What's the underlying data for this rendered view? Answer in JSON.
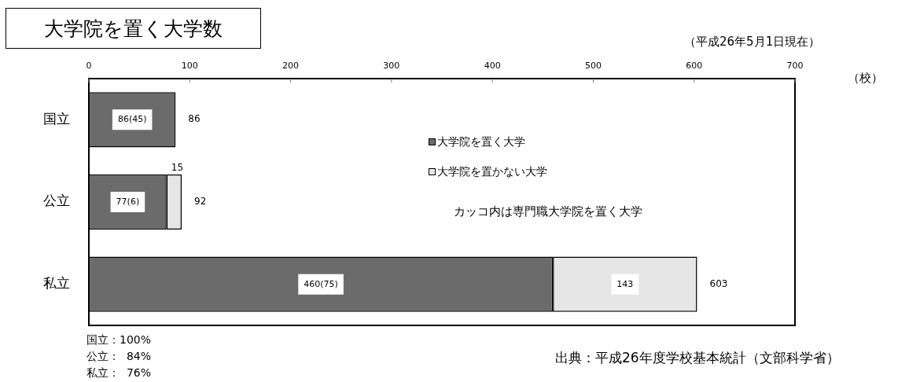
{
  "chart_data": {
    "type": "bar",
    "orientation": "horizontal",
    "stacked": true,
    "title": "大学院を置く大学数",
    "subtitle": "（平成26年5月1日現在）",
    "xlabel": "（校）",
    "categories": [
      "国立",
      "公立",
      "私立"
    ],
    "series": [
      {
        "name": "大学院を置く大学",
        "color": "#6b6b6b",
        "values": [
          86,
          77,
          460
        ],
        "value_labels": [
          "86(45)",
          "77(6)",
          "460(75)"
        ]
      },
      {
        "name": "大学院を置かない大学",
        "color": "#e6e6e6",
        "values": [
          0,
          15,
          143
        ],
        "value_labels": [
          null,
          "15",
          "143"
        ]
      }
    ],
    "totals": [
      "86",
      "92",
      "603"
    ],
    "xlim": [
      0,
      700
    ],
    "xticks": [
      0,
      100,
      200,
      300,
      400,
      500,
      600,
      700
    ],
    "legend": "top",
    "annotations": [
      "カッコ内は専門職大学院を置く大学",
      "国立：100%",
      "公立：  84%",
      "私立：  76%",
      "出典：平成26年度学校基本統計（文部科学省）"
    ]
  }
}
